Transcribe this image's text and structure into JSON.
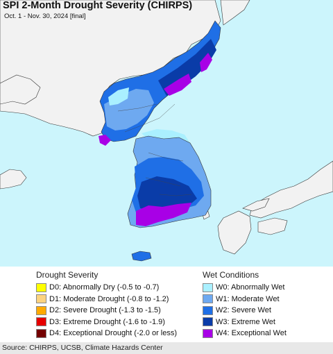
{
  "header": {
    "title": "SPI 2-Month Drought Severity (CHIRPS)",
    "subtitle": "Oct. 1 - Nov. 30, 2024 [final]"
  },
  "map": {
    "ocean_color": "#ccf5fc",
    "land_color": "#f2f2f2",
    "border_color": "#333333"
  },
  "legend": {
    "drought": {
      "heading": "Drought Severity",
      "items": [
        {
          "label": "D0: Abnormally Dry (-0.5 to -0.7)",
          "color": "#ffff00"
        },
        {
          "label": "D1: Moderate Drought (-0.8 to -1.2)",
          "color": "#fcd37f"
        },
        {
          "label": "D2: Severe Drought (-1.3 to -1.5)",
          "color": "#ffaa00"
        },
        {
          "label": "D3: Extreme Drought (-1.6 to -1.9)",
          "color": "#e60000"
        },
        {
          "label": "D4: Exceptional Drought (-2.0 or less)",
          "color": "#730000"
        }
      ]
    },
    "wet": {
      "heading": "Wet Conditions",
      "items": [
        {
          "label": "W0: Abnormally Wet",
          "color": "#aaf0ff"
        },
        {
          "label": "W1: Moderate Wet",
          "color": "#6ea9f0"
        },
        {
          "label": "W2: Severe Wet",
          "color": "#1f6fe6"
        },
        {
          "label": "W3: Extreme Wet",
          "color": "#0a3ca8"
        },
        {
          "label": "W4: Exceptional Wet",
          "color": "#a800e6"
        }
      ]
    }
  },
  "footer": {
    "source": "Source: CHIRPS, UCSB, Climate Hazards Center"
  }
}
